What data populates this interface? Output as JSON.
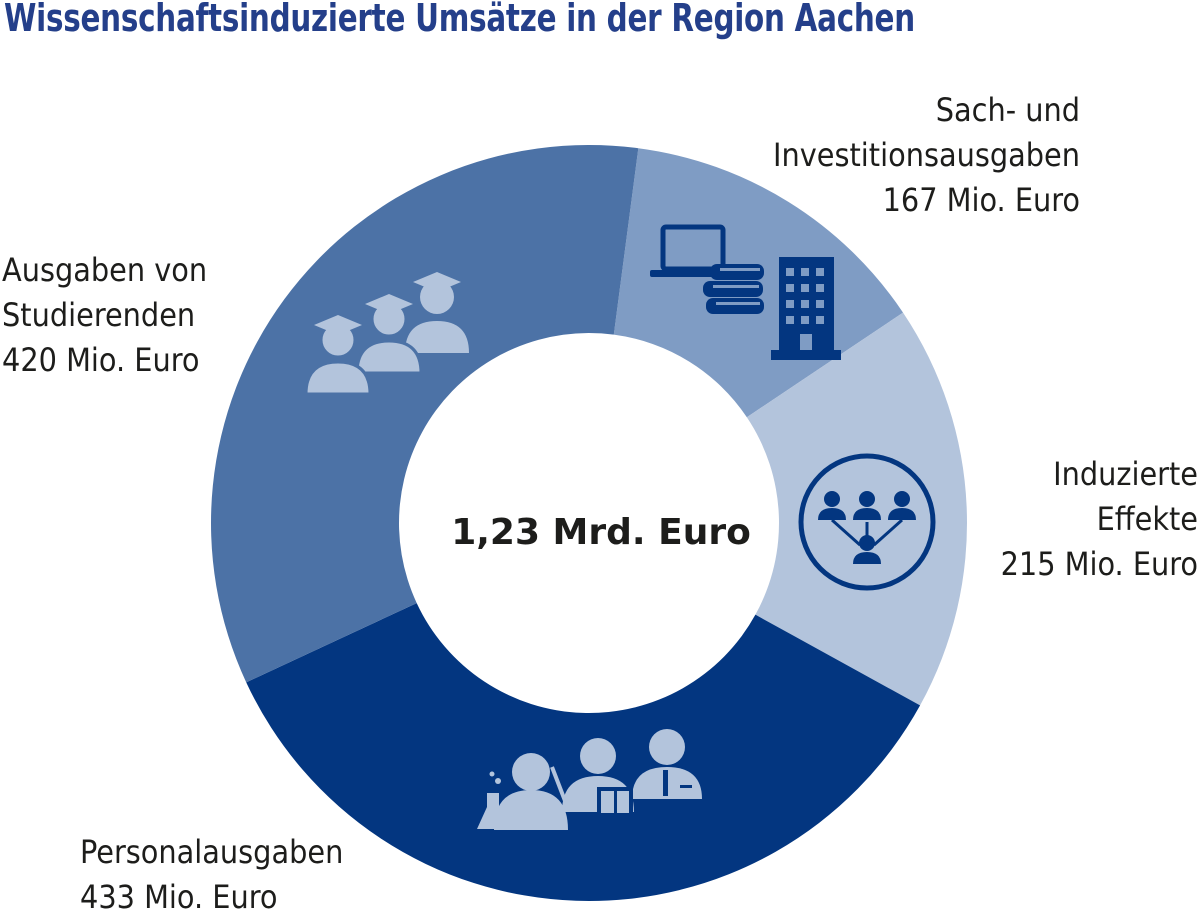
{
  "chart_data": {
    "type": "pie",
    "title": "Wissenschaftsinduzierte Umsätze in der Region Aachen",
    "center_label": "1,23 Mrd. Euro",
    "unit": "Mio. Euro",
    "slices": [
      {
        "name_lines": [
          "Sach- und",
          "Investitionsausgaben"
        ],
        "value": 167,
        "value_label": "167 Mio. Euro",
        "color": "#7f9cc4",
        "icon": "laptop-books-building-icon"
      },
      {
        "name_lines": [
          "Induzierte",
          "Effekte"
        ],
        "value": 215,
        "value_label": "215 Mio. Euro",
        "color": "#b3c4dc",
        "icon": "network-people-icon"
      },
      {
        "name_lines": [
          "Personalausgaben"
        ],
        "value": 433,
        "value_label": "433 Mio. Euro",
        "color": "#033680",
        "icon": "staff-scientist-teacher-icon"
      },
      {
        "name_lines": [
          "Ausgaben von",
          "Studierenden"
        ],
        "value": 420,
        "value_label": "420 Mio. Euro",
        "color": "#4c72a6",
        "icon": "graduates-icon"
      }
    ],
    "legend": "none",
    "grid": false
  }
}
